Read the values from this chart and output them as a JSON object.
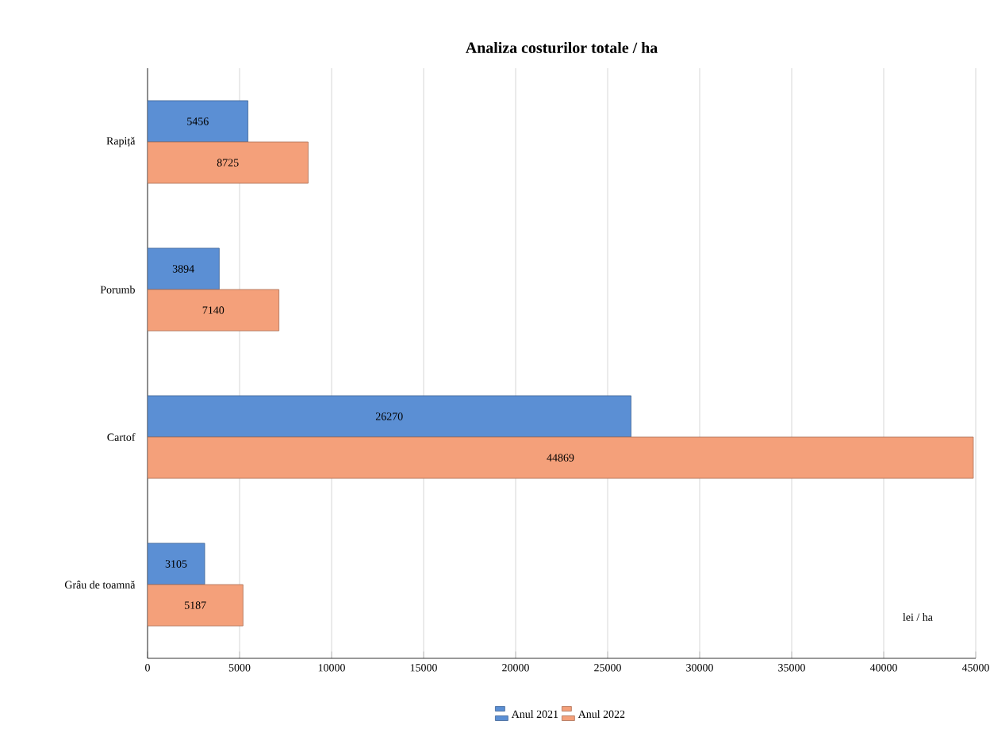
{
  "chart_data": {
    "type": "bar",
    "orientation": "horizontal",
    "title": "Analiza costurilor totale / ha",
    "xlabel": "lei / ha",
    "categories": [
      "Rapiță",
      "Porumb",
      "Cartof",
      "Grâu de toamnă"
    ],
    "series": [
      {
        "name": "Anul 2021",
        "color": "#5b8fd4",
        "values": [
          5456,
          3894,
          26270,
          3105
        ]
      },
      {
        "name": "Anul 2022",
        "color": "#f4a07a",
        "values": [
          8725,
          7140,
          44869,
          5187
        ]
      }
    ],
    "xlim": [
      0,
      45000
    ],
    "xticks": [
      0,
      5000,
      10000,
      15000,
      20000,
      25000,
      30000,
      35000,
      40000,
      45000
    ],
    "grid": "x",
    "legend": "bottom",
    "data_labels": true
  }
}
